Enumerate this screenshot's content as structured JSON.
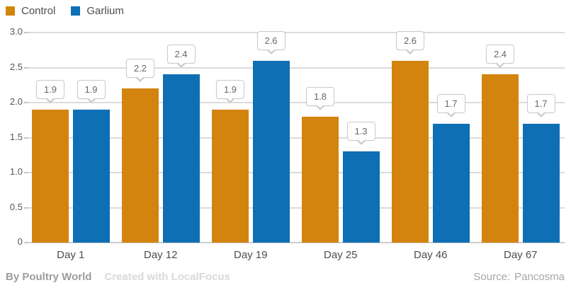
{
  "chart_data": {
    "type": "bar",
    "title": "",
    "categories": [
      "Day 1",
      "Day 12",
      "Day 19",
      "Day 25",
      "Day 46",
      "Day 67"
    ],
    "series": [
      {
        "name": "Control",
        "color": "#d3840e",
        "values": [
          1.9,
          2.2,
          1.9,
          1.8,
          2.6,
          2.4
        ]
      },
      {
        "name": "Garlium",
        "color": "#0f6fb4",
        "values": [
          1.9,
          2.4,
          2.6,
          1.3,
          1.7,
          1.7
        ]
      }
    ],
    "ylim": [
      0,
      3
    ],
    "ytick_step": 0.5,
    "ytick_labels": [
      "0",
      "0.5",
      "1.0",
      "1.5",
      "2.0",
      "2.5",
      "3.0"
    ],
    "grid": "horizontal",
    "legend_position": "top-left",
    "value_labels": "callout-bubbles"
  },
  "footer": {
    "byline": "By Poultry World",
    "credit": "Created with LocalFocus",
    "source_label": "Source:",
    "source_value": "Pancosma"
  }
}
